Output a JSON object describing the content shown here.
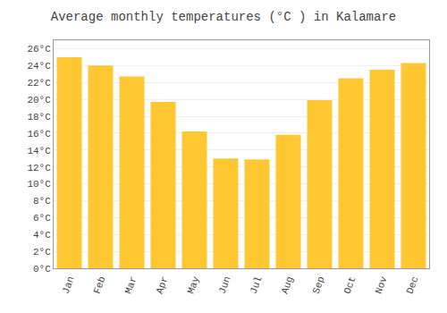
{
  "chart_data": {
    "type": "bar",
    "title": "Average monthly temperatures (°C ) in Kalamare",
    "categories": [
      "Jan",
      "Feb",
      "Mar",
      "Apr",
      "May",
      "Jun",
      "Jul",
      "Aug",
      "Sep",
      "Oct",
      "Nov",
      "Dec"
    ],
    "values": [
      25.0,
      24.0,
      22.7,
      19.7,
      16.2,
      13.0,
      12.9,
      15.8,
      19.9,
      22.5,
      23.5,
      24.3
    ],
    "color": "#FFC832",
    "ylim": [
      0,
      27
    ],
    "yticks": [
      {
        "value": 0,
        "label": "0°C"
      },
      {
        "value": 2,
        "label": "2°C"
      },
      {
        "value": 4,
        "label": "4°C"
      },
      {
        "value": 6,
        "label": "6°C"
      },
      {
        "value": 8,
        "label": "8°C"
      },
      {
        "value": 10,
        "label": "10°C"
      },
      {
        "value": 12,
        "label": "12°C"
      },
      {
        "value": 14,
        "label": "14°C"
      },
      {
        "value": 16,
        "label": "16°C"
      },
      {
        "value": 18,
        "label": "18°C"
      },
      {
        "value": 20,
        "label": "20°C"
      },
      {
        "value": 22,
        "label": "22°C"
      },
      {
        "value": 24,
        "label": "24°C"
      },
      {
        "value": 26,
        "label": "26°C"
      }
    ],
    "grid": true
  }
}
